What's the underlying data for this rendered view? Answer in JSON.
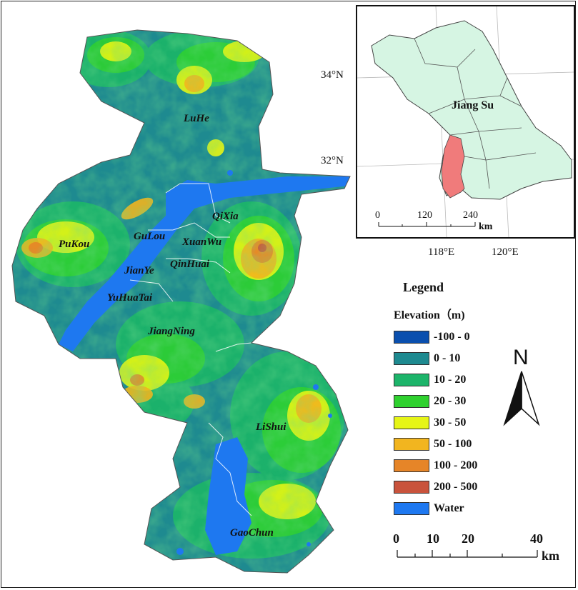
{
  "districts": {
    "luhe": "LuHe",
    "pukou": "PuKou",
    "qixia": "QiXia",
    "gulou": "GuLou",
    "xuanwu": "XuanWu",
    "jianye": "JianYe",
    "qinhuai": "QinHuai",
    "yuhuatai": "YuHuaTai",
    "jiangning": "JiangNing",
    "lishui": "LiShui",
    "gaochun": "GaoChun"
  },
  "inset": {
    "province_label": "Jiang Su",
    "lat_34": "34°N",
    "lat_32": "32°N",
    "lon_118": "118°E",
    "lon_120": "120°E",
    "scale_ticks": [
      "0",
      "120",
      "240"
    ],
    "scale_unit": "km",
    "province_color": "#d6f5e3",
    "study_area_color": "#f07b7b"
  },
  "legend": {
    "title": "Legend",
    "subtitle": "Elevation（m)",
    "items": [
      {
        "label": "-100 - 0",
        "color": "#0a4fae"
      },
      {
        "label": "0 - 10",
        "color": "#1e8a90"
      },
      {
        "label": "10  - 20",
        "color": "#1cb46a"
      },
      {
        "label": "20  - 30",
        "color": "#2fd12f"
      },
      {
        "label": "30  - 50",
        "color": "#e6f516"
      },
      {
        "label": "50 - 100",
        "color": "#f2b51f"
      },
      {
        "label": "100 - 200",
        "color": "#e68528"
      },
      {
        "label": "200 - 500",
        "color": "#c9533c"
      },
      {
        "label": "Water",
        "color": "#1e78f0"
      }
    ]
  },
  "north_arrow": "N",
  "scale": {
    "ticks": [
      "0",
      "10",
      "20",
      "40"
    ],
    "unit": "km"
  }
}
